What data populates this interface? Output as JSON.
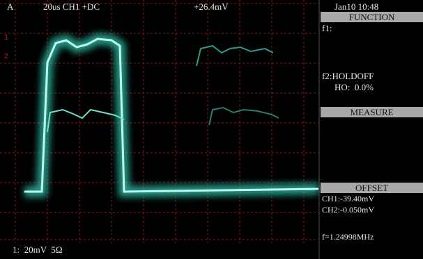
{
  "status_bar": {
    "channel": "A",
    "timebase": "20us CH1 +DC",
    "trigger": "+26.4mV"
  },
  "side_panel": {
    "datetime": "Jan10 10:48",
    "function_header": "FUNCTION",
    "f1": "f1:",
    "f2": "f2:HOLDOFF",
    "holdoff": "HO:  0.0%",
    "measure_header": "MEASURE",
    "offset_header": "OFFSET",
    "ch1_offset": "CH1:-39.40mV",
    "ch2_offset": "CH2:-0.050mV",
    "frequency": "f=1.24998MHz"
  },
  "footer": {
    "scale": "1:  20mV  5Ω"
  }
}
